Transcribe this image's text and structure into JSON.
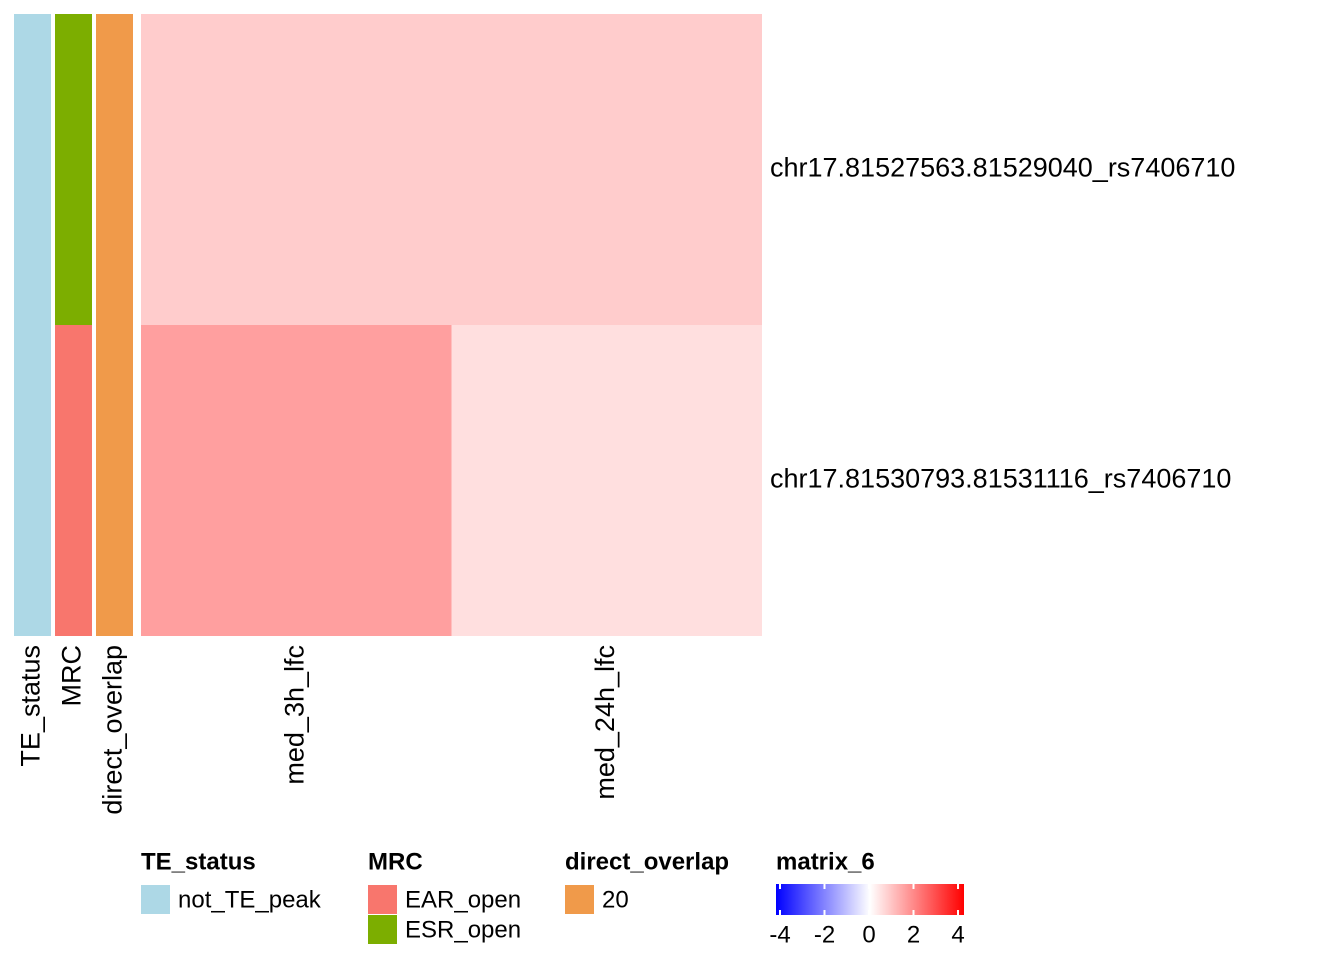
{
  "chart_data": {
    "type": "heatmap",
    "rows": [
      "chr17.81527563.81529040_rs7406710",
      "chr17.81530793.81531116_rs7406710"
    ],
    "columns": [
      "med_3h_lfc",
      "med_24h_lfc"
    ],
    "values": [
      [
        0.8,
        0.8
      ],
      [
        1.5,
        0.5
      ]
    ],
    "colorscale": {
      "name": "matrix_6",
      "lim": [
        -4,
        4
      ],
      "ticks": [
        -4,
        -2,
        0,
        2,
        4
      ],
      "colors": [
        "#0000ff",
        "#ffffff",
        "#ff0000"
      ]
    },
    "annotations": [
      {
        "name": "TE_status",
        "values": [
          "not_TE_peak",
          "not_TE_peak"
        ],
        "levels": [
          {
            "label": "not_TE_peak",
            "color": "#add8e6"
          }
        ]
      },
      {
        "name": "MRC",
        "values": [
          "ESR_open",
          "EAR_open"
        ],
        "levels": [
          {
            "label": "EAR_open",
            "color": "#f8766d"
          },
          {
            "label": "ESR_open",
            "color": "#7cae00"
          }
        ]
      },
      {
        "name": "direct_overlap",
        "values": [
          20,
          20
        ],
        "levels": [
          {
            "label": 20,
            "color": "#f09a4a"
          }
        ]
      }
    ]
  }
}
